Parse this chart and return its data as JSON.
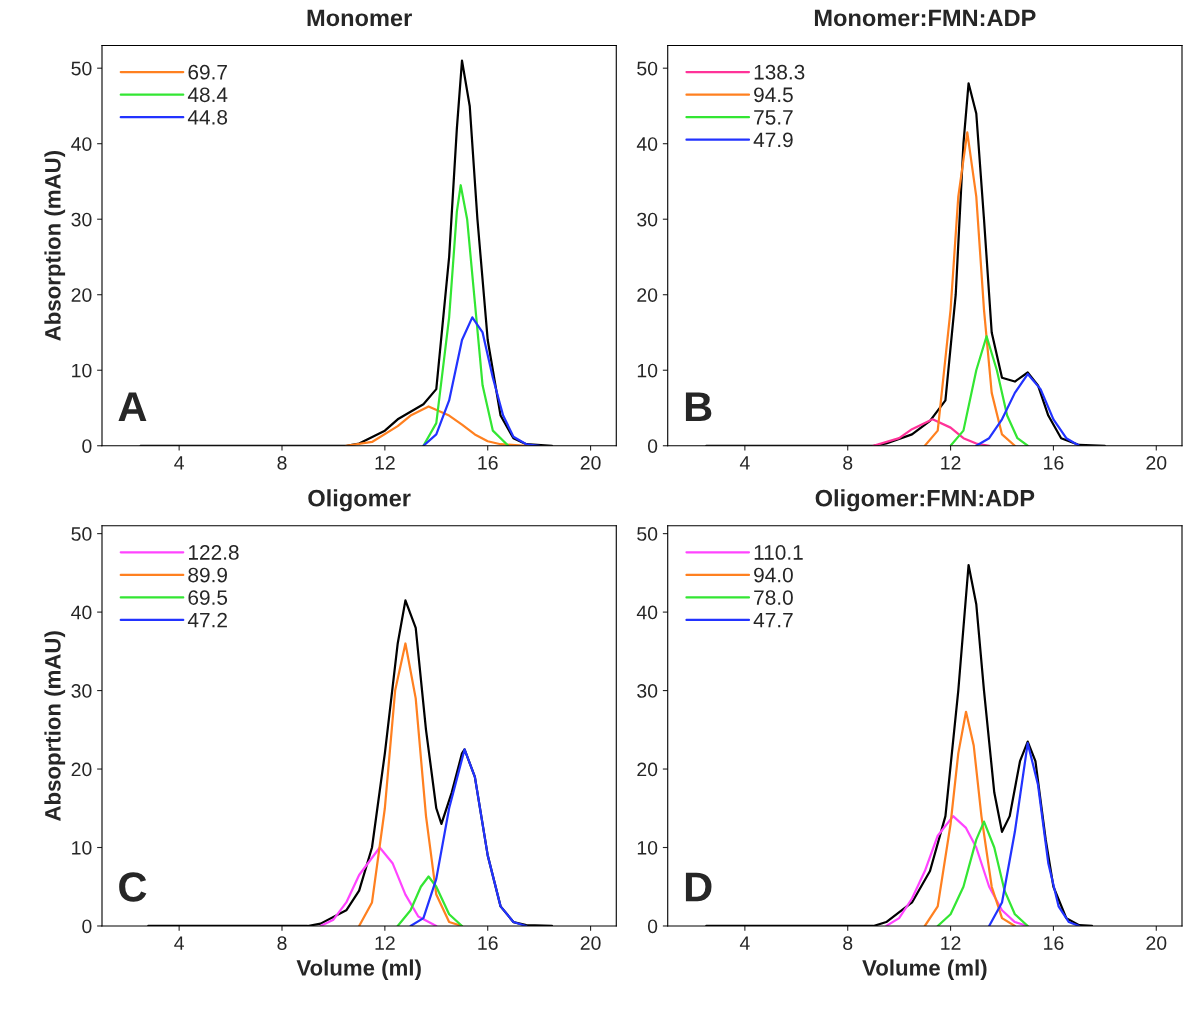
{
  "chart_data": [
    {
      "type": "line",
      "title": "Monomer",
      "ylabel": "Absorption (mAU)",
      "xlim": [
        1,
        21
      ],
      "xticks": [
        4,
        8,
        12,
        16,
        20
      ],
      "ylim": [
        0,
        53
      ],
      "yticks": [
        0,
        10,
        20,
        30,
        40,
        50
      ],
      "grid": false,
      "legend": "top left",
      "annotations": [
        "A"
      ],
      "series": [
        {
          "color": "#000000",
          "x": [
            2.5,
            10.5,
            11,
            12,
            12.5,
            13,
            13.5,
            14,
            14.5,
            14.8,
            15.0,
            15.3,
            15.6,
            16,
            16.5,
            17,
            17.5,
            18.5
          ],
          "values": [
            0,
            0,
            0.3,
            2,
            3.5,
            4.5,
            5.5,
            7.5,
            25,
            42,
            51,
            45,
            30,
            14,
            4,
            1,
            0.2,
            0
          ]
        },
        {
          "name": "69.7",
          "color": "#ff8020",
          "x": [
            10.5,
            11.5,
            12.5,
            13,
            13.7,
            14.5,
            15,
            15.5,
            16,
            16.5,
            17.5
          ],
          "values": [
            0,
            0.5,
            2.6,
            4,
            5.2,
            4,
            2.8,
            1.5,
            0.6,
            0.2,
            0
          ]
        },
        {
          "name": "48.4",
          "color": "#33e633",
          "x": [
            13.5,
            14,
            14.5,
            14.8,
            14.95,
            15.2,
            15.5,
            15.8,
            16.2,
            16.8
          ],
          "values": [
            0,
            3,
            17,
            31,
            34.5,
            30,
            19,
            8,
            2,
            0
          ]
        },
        {
          "name": "44.8",
          "color": "#2233ff",
          "x": [
            13.5,
            14,
            14.5,
            15,
            15.4,
            15.8,
            16.2,
            16.6,
            17,
            17.5,
            18
          ],
          "values": [
            0,
            1.5,
            6,
            14,
            17,
            15,
            9,
            4,
            1.2,
            0.2,
            0
          ]
        }
      ]
    },
    {
      "type": "line",
      "title": "Monomer:FMN:ADP",
      "xlim": [
        1,
        21
      ],
      "xticks": [
        4,
        8,
        12,
        16,
        20
      ],
      "ylim": [
        0,
        53
      ],
      "yticks": [
        0,
        10,
        20,
        30,
        40,
        50
      ],
      "grid": false,
      "legend": "top left",
      "annotations": [
        "B"
      ],
      "series": [
        {
          "color": "#000000",
          "x": [
            2.5,
            9,
            9.5,
            10.5,
            11.2,
            11.8,
            12.2,
            12.5,
            12.7,
            13,
            13.3,
            13.6,
            14,
            14.5,
            15,
            15.4,
            15.8,
            16.3,
            17,
            18
          ],
          "values": [
            0,
            0,
            0.3,
            1.5,
            3.3,
            6,
            20,
            40,
            48,
            44,
            30,
            15,
            9,
            8.5,
            9.7,
            8,
            4,
            1,
            0.1,
            0
          ]
        },
        {
          "name": "138.3",
          "color": "#ff3399",
          "x": [
            9,
            10,
            10.5,
            11.3,
            12,
            12.5,
            13,
            13.5
          ],
          "values": [
            0,
            1,
            2.2,
            3.5,
            2.4,
            1,
            0.3,
            0
          ]
        },
        {
          "name": "94.5",
          "color": "#ff8020",
          "x": [
            11,
            11.5,
            12,
            12.3,
            12.65,
            13,
            13.3,
            13.6,
            14,
            14.5
          ],
          "values": [
            0,
            2,
            18,
            33,
            41.5,
            33,
            18,
            7,
            1.5,
            0
          ]
        },
        {
          "name": "75.7",
          "color": "#33e633",
          "x": [
            12,
            12.5,
            13,
            13.4,
            13.8,
            14.2,
            14.6,
            15
          ],
          "values": [
            0,
            2,
            10,
            14.5,
            10,
            4,
            1,
            0
          ]
        },
        {
          "name": "47.9",
          "color": "#2233ff",
          "x": [
            13,
            13.5,
            14,
            14.5,
            15,
            15.5,
            16,
            16.5,
            17
          ],
          "values": [
            0,
            1,
            3.5,
            7,
            9.5,
            7.5,
            3.5,
            1,
            0
          ]
        }
      ]
    },
    {
      "type": "line",
      "title": "Oligomer",
      "xlabel": "Volume (ml)",
      "ylabel": "Absoprtion (mAU)",
      "xlim": [
        1,
        21
      ],
      "xticks": [
        4,
        8,
        12,
        16,
        20
      ],
      "ylim": [
        0,
        51
      ],
      "yticks": [
        0,
        10,
        20,
        30,
        40,
        50
      ],
      "grid": false,
      "legend": "top left",
      "annotations": [
        "C"
      ],
      "series": [
        {
          "color": "#000000",
          "x": [
            2.8,
            9,
            9.5,
            10.5,
            11,
            11.5,
            12,
            12.5,
            12.8,
            13.2,
            13.6,
            14,
            14.2,
            14.6,
            15,
            15.1,
            15.5,
            16,
            16.5,
            17,
            17.5,
            18.5
          ],
          "values": [
            0,
            0,
            0.3,
            2,
            4.5,
            10,
            22,
            36,
            41.5,
            38,
            25,
            15,
            13,
            17,
            22,
            22.5,
            19,
            9,
            2.5,
            0.5,
            0.1,
            0
          ]
        },
        {
          "name": "122.8",
          "color": "#ff44ff",
          "x": [
            9.5,
            10,
            10.5,
            11,
            11.8,
            12.3,
            12.8,
            13.3,
            14
          ],
          "values": [
            0,
            0.8,
            3,
            6.5,
            10,
            8,
            4,
            1.2,
            0
          ]
        },
        {
          "name": "89.9",
          "color": "#ff8020",
          "x": [
            11,
            11.5,
            12,
            12.4,
            12.8,
            13.2,
            13.6,
            14,
            14.5,
            15
          ],
          "values": [
            0,
            3,
            15,
            30,
            36,
            29,
            14,
            4,
            0.5,
            0
          ]
        },
        {
          "name": "69.5",
          "color": "#33e633",
          "x": [
            12.5,
            13,
            13.4,
            13.7,
            14,
            14.5,
            15
          ],
          "values": [
            0,
            2,
            5,
            6.3,
            5,
            1.5,
            0
          ]
        },
        {
          "name": "47.2",
          "color": "#2233ff",
          "x": [
            13,
            13.5,
            14,
            14.5,
            15.1,
            15.5,
            16,
            16.5,
            17,
            17.5
          ],
          "values": [
            0,
            1,
            6,
            15,
            22.5,
            19,
            9,
            2.5,
            0.5,
            0
          ]
        }
      ]
    },
    {
      "type": "line",
      "title": "Oligomer:FMN:ADP",
      "xlabel": "Volume (ml)",
      "xlim": [
        1,
        21
      ],
      "xticks": [
        4,
        8,
        12,
        16,
        20
      ],
      "ylim": [
        0,
        51
      ],
      "yticks": [
        0,
        10,
        20,
        30,
        40,
        50
      ],
      "grid": false,
      "legend": "top left",
      "annotations": [
        "D"
      ],
      "series": [
        {
          "color": "#000000",
          "x": [
            2.5,
            9,
            9.5,
            10.5,
            11.2,
            11.8,
            12.3,
            12.7,
            13,
            13.3,
            13.7,
            14,
            14.3,
            14.7,
            15,
            15.3,
            15.7,
            16,
            16.5,
            17,
            17.5
          ],
          "values": [
            0,
            0,
            0.5,
            3,
            7,
            14,
            30,
            46,
            41,
            30,
            17,
            12,
            14,
            21,
            23.5,
            21,
            11,
            5,
            1,
            0.1,
            0
          ]
        },
        {
          "name": "110.1",
          "color": "#ff44ff",
          "x": [
            9.5,
            10,
            10.5,
            11,
            11.5,
            12.1,
            12.6,
            13,
            13.5,
            14,
            14.5,
            15
          ],
          "values": [
            0,
            1,
            3.5,
            7,
            11.5,
            14,
            12.5,
            10,
            5,
            2,
            0.5,
            0
          ]
        },
        {
          "name": "94.0",
          "color": "#ff8020",
          "x": [
            11,
            11.5,
            12,
            12.3,
            12.6,
            12.9,
            13.2,
            13.6,
            14,
            14.5
          ],
          "values": [
            0,
            2.5,
            13,
            22,
            27.3,
            23,
            14,
            5,
            1,
            0
          ]
        },
        {
          "name": "78.0",
          "color": "#33e633",
          "x": [
            11.5,
            12,
            12.5,
            13,
            13.3,
            13.7,
            14.1,
            14.5,
            15
          ],
          "values": [
            0,
            1.5,
            5,
            11,
            13.3,
            10,
            4.5,
            1.5,
            0
          ]
        },
        {
          "name": "47.7",
          "color": "#2233ff",
          "x": [
            13.5,
            14,
            14.5,
            15,
            15.4,
            15.8,
            16.2,
            16.6,
            17
          ],
          "values": [
            0,
            3,
            12,
            23.3,
            18,
            8,
            2.5,
            0.5,
            0
          ]
        }
      ]
    }
  ]
}
